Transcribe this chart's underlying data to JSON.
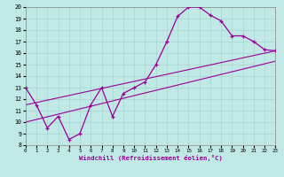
{
  "xlabel": "Windchill (Refroidissement éolien,°C)",
  "bg_color": "#c0e8e4",
  "grid_color": "#a8d4d0",
  "line_color": "#990099",
  "xlim": [
    0,
    23
  ],
  "ylim": [
    8,
    20
  ],
  "xticks": [
    0,
    1,
    2,
    3,
    4,
    5,
    6,
    7,
    8,
    9,
    10,
    11,
    12,
    13,
    14,
    15,
    16,
    17,
    18,
    19,
    20,
    21,
    22,
    23
  ],
  "yticks": [
    8,
    9,
    10,
    11,
    12,
    13,
    14,
    15,
    16,
    17,
    18,
    19,
    20
  ],
  "curve_x": [
    0,
    1,
    2,
    3,
    4,
    5,
    6,
    7,
    8,
    9,
    10,
    11,
    12,
    13,
    14,
    15,
    16,
    17,
    18,
    19,
    20,
    21,
    22,
    23
  ],
  "curve_y": [
    13.0,
    11.5,
    9.5,
    10.5,
    8.5,
    9.0,
    11.5,
    13.0,
    10.5,
    12.5,
    13.0,
    13.5,
    15.0,
    17.0,
    19.2,
    20.0,
    20.0,
    19.3,
    18.8,
    17.5,
    17.5,
    17.0,
    16.3,
    16.2
  ],
  "line1_x": [
    0,
    23
  ],
  "line1_y": [
    11.5,
    16.2
  ],
  "line2_x": [
    0,
    23
  ],
  "line2_y": [
    10.0,
    15.3
  ]
}
